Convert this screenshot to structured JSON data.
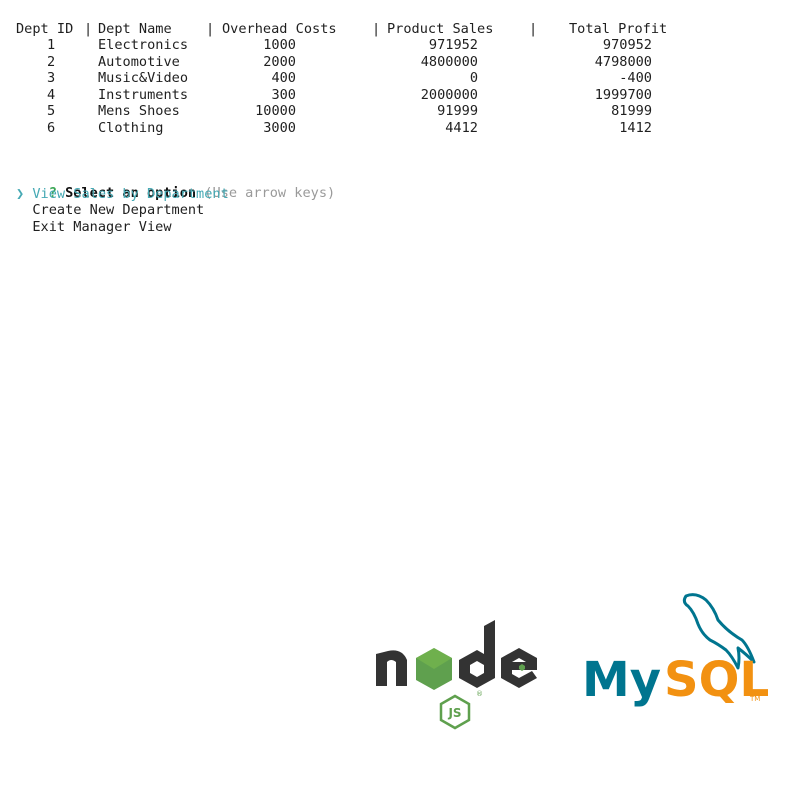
{
  "table": {
    "headers": [
      "Dept ID",
      "Dept Name",
      "Overhead Costs",
      "Product Sales",
      "Total Profit"
    ],
    "rows": [
      {
        "id": "1",
        "name": "Electronics",
        "overhead": "1000",
        "sales": "971952",
        "profit": "970952"
      },
      {
        "id": "2",
        "name": "Automotive",
        "overhead": "2000",
        "sales": "4800000",
        "profit": "4798000"
      },
      {
        "id": "3",
        "name": "Music&Video",
        "overhead": "400",
        "sales": "0",
        "profit": "-400"
      },
      {
        "id": "4",
        "name": "Instruments",
        "overhead": "300",
        "sales": "2000000",
        "profit": "1999700"
      },
      {
        "id": "5",
        "name": "Mens Shoes",
        "overhead": "10000",
        "sales": "91999",
        "profit": "81999"
      },
      {
        "id": "6",
        "name": "Clothing",
        "overhead": "3000",
        "sales": "4412",
        "profit": "1412"
      }
    ]
  },
  "prompt": {
    "marker": "?",
    "question": "Select an option",
    "hint": "(Use arrow keys)",
    "pointer": "❯",
    "options": [
      "View Sales by Department",
      "Create New Department",
      "Exit Manager View"
    ],
    "selected_index": 0
  },
  "logos": {
    "node": {
      "text": "node",
      "badge": "JS",
      "reg": "®"
    },
    "mysql": {
      "text_my": "My",
      "text_sql": "SQL",
      "tm": "TM"
    }
  },
  "colors": {
    "prompt_marker": "#3aa655",
    "selected": "#45a9b4",
    "hint": "#9a9a9a",
    "node_dark": "#333333",
    "node_green": "#5fa04e",
    "mysql_blue": "#00758f",
    "mysql_orange": "#f29111"
  }
}
